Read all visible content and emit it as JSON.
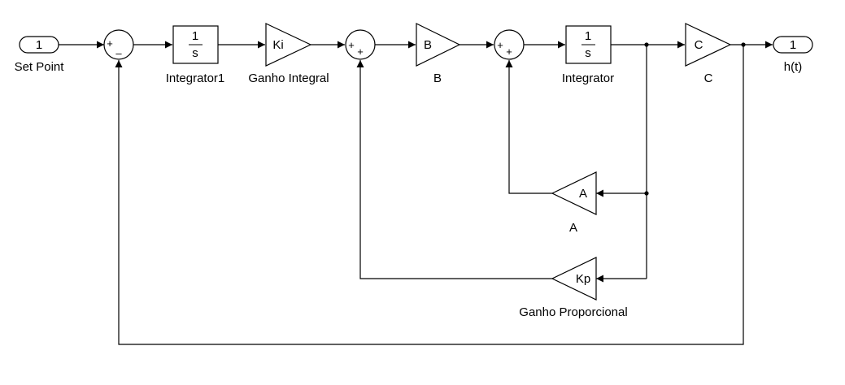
{
  "diagram": {
    "setpoint": {
      "port": "1",
      "label": "Set Point"
    },
    "output": {
      "port": "1",
      "label": "h(t)"
    },
    "sum1": {
      "signs": [
        "+",
        "–"
      ]
    },
    "integrator1": {
      "num": "1",
      "den": "s",
      "label": "Integrator1"
    },
    "ki_gain": {
      "text": "Ki",
      "label": "Ganho Integral"
    },
    "sum2": {
      "signs": [
        "+",
        "+"
      ]
    },
    "b_gain": {
      "text": "B",
      "label": "B"
    },
    "sum3": {
      "signs": [
        "+",
        "+"
      ]
    },
    "integrator": {
      "num": "1",
      "den": "s",
      "label": "Integrator"
    },
    "c_gain": {
      "text": "C",
      "label": "C"
    },
    "a_gain": {
      "text": "A",
      "label": "A"
    },
    "kp_gain": {
      "text": "Kp",
      "label": "Ganho Proporcional"
    }
  }
}
